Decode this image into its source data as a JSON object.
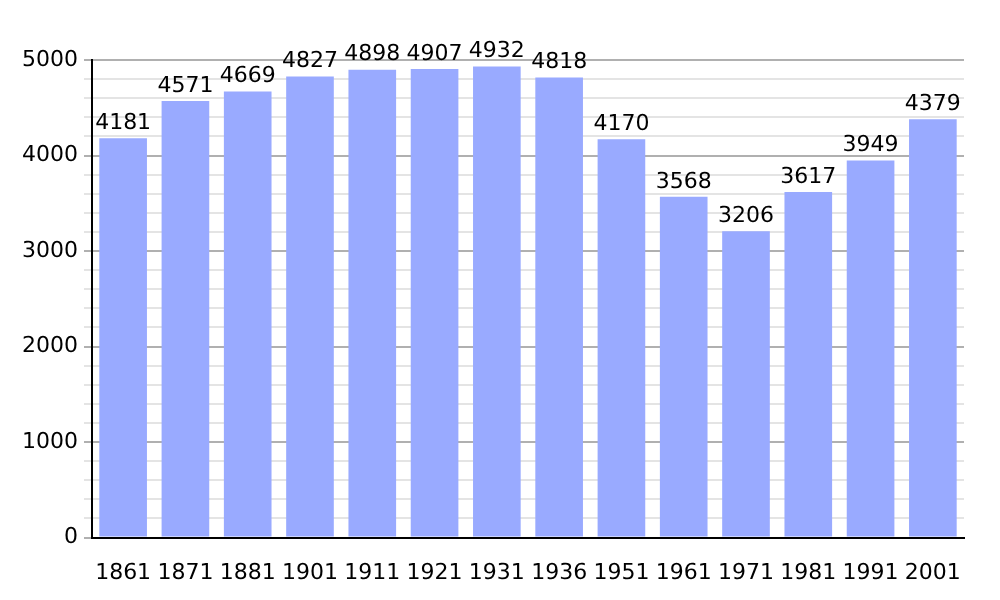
{
  "chart_data": {
    "type": "bar",
    "categories": [
      "1861",
      "1871",
      "1881",
      "1901",
      "1911",
      "1921",
      "1931",
      "1936",
      "1951",
      "1961",
      "1971",
      "1981",
      "1991",
      "2001"
    ],
    "values": [
      4181,
      4571,
      4669,
      4827,
      4898,
      4907,
      4932,
      4818,
      4170,
      3568,
      3206,
      3617,
      3949,
      4379
    ],
    "color": "#99aaff",
    "ylim": [
      0,
      5000
    ],
    "yticks": [
      0,
      {
        "value": 200,
        "label": null
      },
      {
        "value": 400,
        "label": null
      },
      {
        "value": 600,
        "label": null
      },
      {
        "value": 800,
        "label": null
      },
      1000,
      {
        "value": 1200,
        "label": null
      },
      {
        "value": 1400,
        "label": null
      },
      {
        "value": 1600,
        "label": null
      },
      {
        "value": 1800,
        "label": null
      },
      2000,
      {
        "value": 2200,
        "label": null
      },
      {
        "value": 2400,
        "label": null
      },
      {
        "value": 2600,
        "label": null
      },
      {
        "value": 2800,
        "label": null
      },
      3000,
      {
        "value": 3200,
        "label": null
      },
      {
        "value": 3400,
        "label": null
      },
      {
        "value": 3600,
        "label": null
      },
      {
        "value": 3800,
        "label": null
      },
      4000,
      {
        "value": 4200,
        "label": null
      },
      {
        "value": 4400,
        "label": null
      },
      {
        "value": 4600,
        "label": null
      },
      {
        "value": 4800,
        "label": null
      },
      5000
    ],
    "grid": "y",
    "data_labels": true
  }
}
